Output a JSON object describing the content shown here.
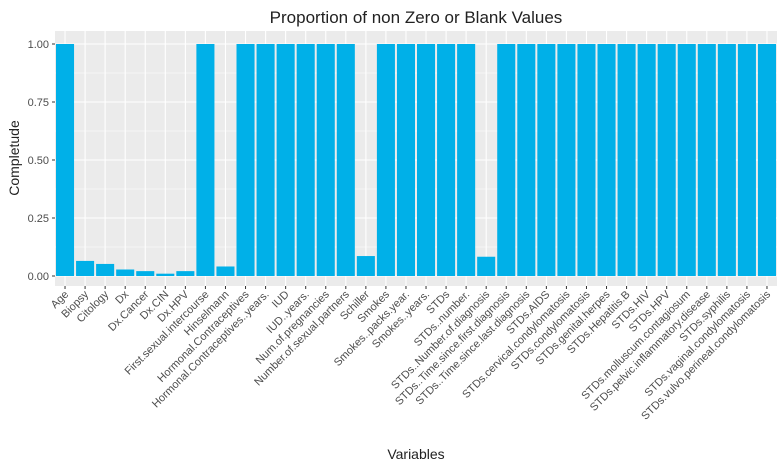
{
  "chart_data": {
    "type": "bar",
    "title": "Proportion of non Zero or Blank Values",
    "xlabel": "Variables",
    "ylabel": "Completude",
    "ylim": [
      0,
      1.02
    ],
    "yticks": [
      "0.00",
      "0.25",
      "0.50",
      "0.75",
      "1.00"
    ],
    "grid": true,
    "bar_color": "#00b0e8",
    "panel_color": "#ebebeb",
    "categories": [
      "Age",
      "Biopsy",
      "Citology",
      "Dx",
      "Dx.Cancer",
      "Dx.CIN",
      "Dx.HPV",
      "First.sexual.intercourse",
      "Hinselmann",
      "Hormonal.Contraceptives",
      "Hormonal.Contraceptives..years.",
      "IUD",
      "IUD..years.",
      "Num.of.pregnancies",
      "Number.of.sexual.partners",
      "Schiller",
      "Smokes",
      "Smokes..packs.year.",
      "Smokes..years.",
      "STDs",
      "STDs..number.",
      "STDs..Number.of.diagnosis",
      "STDs..Time.since.first.diagnosis",
      "STDs..Time.since.last.diagnosis",
      "STDs.AIDS",
      "STDs.cervical.condylomatosis",
      "STDs.condylomatosis",
      "STDs.genital.herpes",
      "STDs.Hepatitis.B",
      "STDs.HIV",
      "STDs.HPV",
      "STDs.molluscum.contagiosum",
      "STDs.pelvic.inflammatory.disease",
      "STDs.syphilis",
      "STDs.vaginal.condylomatosis",
      "STDs.vulvo.perineal.condylomatosis"
    ],
    "values": [
      1.0,
      0.065,
      0.052,
      0.028,
      0.021,
      0.01,
      0.021,
      1.0,
      0.041,
      1.0,
      1.0,
      1.0,
      1.0,
      1.0,
      1.0,
      0.086,
      1.0,
      1.0,
      1.0,
      1.0,
      1.0,
      0.083,
      1.0,
      1.0,
      1.0,
      1.0,
      1.0,
      1.0,
      1.0,
      1.0,
      1.0,
      1.0,
      1.0,
      1.0,
      1.0,
      1.0
    ]
  }
}
